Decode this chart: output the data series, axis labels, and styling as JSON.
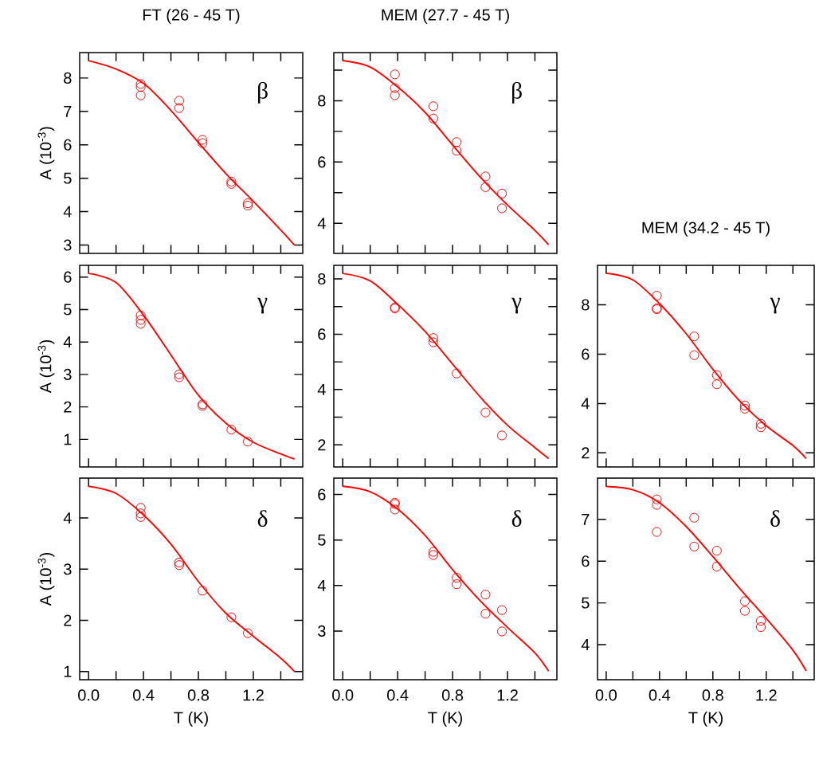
{
  "chart_data": [
    {
      "type": "scatter",
      "title": "FT (26 - 45 T)",
      "ylabel": "A (10$^{-3}$)",
      "annotations": [
        "β"
      ],
      "tick_labels": "y",
      "xlim": [
        -0.065,
        1.56
      ],
      "xticks": [
        {
          "value": 0,
          "label": null
        },
        {
          "value": 0.2,
          "label": null
        },
        {
          "value": 0.4,
          "label": null
        },
        {
          "value": 0.6,
          "label": null
        },
        {
          "value": 0.8,
          "label": null
        },
        {
          "value": 1.0,
          "label": null
        },
        {
          "value": 1.2,
          "label": null
        },
        {
          "value": 1.4,
          "label": null
        }
      ],
      "ylim": [
        2.75,
        8.76
      ],
      "yticks": [
        3,
        4,
        5,
        6,
        7,
        8
      ],
      "series": [
        {
          "marker": "circle",
          "color": "#ff0000",
          "x": [
            0.38,
            0.38,
            0.38,
            0.66,
            0.66,
            0.83,
            0.83,
            1.04,
            1.04,
            1.16,
            1.16
          ],
          "values": [
            7.82,
            7.73,
            7.48,
            7.32,
            7.1,
            6.15,
            6.05,
            4.9,
            4.83,
            4.25,
            4.18
          ]
        },
        {
          "type": "line",
          "color": "#ff0000",
          "x": [
            0,
            0.2,
            0.4,
            0.6,
            0.8,
            1.0,
            1.2,
            1.4,
            1.5
          ],
          "values": [
            8.52,
            8.27,
            7.84,
            7.03,
            6.07,
            5.14,
            4.31,
            3.45,
            3.0
          ]
        }
      ]
    },
    {
      "type": "scatter",
      "title": "MEM (27.7 - 45 T)",
      "annotations": [
        "β"
      ],
      "tick_labels": "y",
      "xlim": [
        -0.065,
        1.56
      ],
      "xticks": [
        {
          "value": 0,
          "label": null
        },
        {
          "value": 0.2,
          "label": null
        },
        {
          "value": 0.4,
          "label": null
        },
        {
          "value": 0.6,
          "label": null
        },
        {
          "value": 0.8,
          "label": null
        },
        {
          "value": 1.0,
          "label": null
        },
        {
          "value": 1.2,
          "label": null
        },
        {
          "value": 1.4,
          "label": null
        }
      ],
      "ylim": [
        3.02,
        9.57
      ],
      "yticks": [
        4,
        {
          "value": 5,
          "label": null
        },
        6,
        {
          "value": 7,
          "label": null
        },
        8,
        {
          "value": 9,
          "label": null
        }
      ],
      "series": [
        {
          "marker": "circle",
          "color": "#ff0000",
          "x": [
            0.38,
            0.38,
            0.38,
            0.66,
            0.66,
            0.83,
            0.83,
            1.04,
            1.04,
            1.16,
            1.16
          ],
          "values": [
            8.86,
            8.41,
            8.18,
            7.82,
            7.42,
            6.65,
            6.37,
            5.53,
            5.18,
            4.97,
            4.49
          ]
        },
        {
          "type": "line",
          "color": "#ff0000",
          "x": [
            0,
            0.2,
            0.4,
            0.6,
            0.8,
            1.0,
            1.2,
            1.4,
            1.5
          ],
          "values": [
            9.31,
            9.1,
            8.45,
            7.62,
            6.56,
            5.52,
            4.6,
            3.77,
            3.3
          ]
        }
      ]
    },
    {
      "type": "scatter",
      "ylabel": "A (10$^{-3}$)",
      "annotations": [
        "γ"
      ],
      "tick_labels": "y",
      "xlim": [
        -0.065,
        1.56
      ],
      "xticks": [
        {
          "value": 0,
          "label": null
        },
        {
          "value": 0.2,
          "label": null
        },
        {
          "value": 0.4,
          "label": null
        },
        {
          "value": 0.6,
          "label": null
        },
        {
          "value": 0.8,
          "label": null
        },
        {
          "value": 1.0,
          "label": null
        },
        {
          "value": 1.2,
          "label": null
        },
        {
          "value": 1.4,
          "label": null
        }
      ],
      "ylim": [
        0.15,
        6.36
      ],
      "yticks": [
        1,
        2,
        3,
        4,
        5,
        6
      ],
      "series": [
        {
          "marker": "circle",
          "color": "#ff0000",
          "x": [
            0.38,
            0.38,
            0.38,
            0.66,
            0.66,
            0.83,
            0.83,
            1.04,
            1.16
          ],
          "values": [
            4.82,
            4.68,
            4.56,
            3.0,
            2.91,
            2.08,
            2.03,
            1.3,
            0.93
          ]
        },
        {
          "type": "line",
          "color": "#ff0000",
          "x": [
            0,
            0.2,
            0.4,
            0.6,
            0.8,
            1.0,
            1.2,
            1.4,
            1.5
          ],
          "values": [
            6.11,
            5.83,
            4.83,
            3.6,
            2.36,
            1.5,
            0.91,
            0.55,
            0.39
          ]
        }
      ]
    },
    {
      "type": "scatter",
      "annotations": [
        "γ"
      ],
      "tick_labels": "y",
      "xlim": [
        -0.065,
        1.56
      ],
      "xticks": [
        {
          "value": 0,
          "label": null
        },
        {
          "value": 0.2,
          "label": null
        },
        {
          "value": 0.4,
          "label": null
        },
        {
          "value": 0.6,
          "label": null
        },
        {
          "value": 0.8,
          "label": null
        },
        {
          "value": 1.0,
          "label": null
        },
        {
          "value": 1.2,
          "label": null
        },
        {
          "value": 1.4,
          "label": null
        }
      ],
      "ylim": [
        1.2,
        8.49
      ],
      "yticks": [
        2,
        {
          "value": 3,
          "label": null
        },
        4,
        {
          "value": 5,
          "label": null
        },
        6,
        {
          "value": 7,
          "label": null
        },
        8
      ],
      "series": [
        {
          "marker": "circle",
          "color": "#ff0000",
          "x": [
            0.38,
            0.38,
            0.66,
            0.66,
            0.83,
            1.04,
            1.16
          ],
          "values": [
            6.97,
            6.93,
            5.86,
            5.71,
            4.58,
            3.17,
            2.34
          ]
        },
        {
          "type": "line",
          "color": "#ff0000",
          "x": [
            0,
            0.2,
            0.4,
            0.6,
            0.8,
            1.0,
            1.2,
            1.4,
            1.5
          ],
          "values": [
            8.2,
            7.93,
            7.08,
            6.1,
            4.92,
            3.74,
            2.71,
            1.9,
            1.5
          ]
        }
      ]
    },
    {
      "type": "scatter",
      "title": "MEM (34.2 - 45 T)",
      "annotations": [
        "γ"
      ],
      "tick_labels": "y",
      "xlim": [
        -0.065,
        1.56
      ],
      "xticks": [
        {
          "value": 0,
          "label": null
        },
        {
          "value": 0.2,
          "label": null
        },
        {
          "value": 0.4,
          "label": null
        },
        {
          "value": 0.6,
          "label": null
        },
        {
          "value": 0.8,
          "label": null
        },
        {
          "value": 1.0,
          "label": null
        },
        {
          "value": 1.2,
          "label": null
        },
        {
          "value": 1.4,
          "label": null
        }
      ],
      "ylim": [
        1.43,
        9.6
      ],
      "yticks": [
        2,
        4,
        6,
        8
      ],
      "series": [
        {
          "marker": "circle",
          "color": "#ff0000",
          "x": [
            0.38,
            0.38,
            0.38,
            0.66,
            0.66,
            0.83,
            0.83,
            1.04,
            1.04,
            1.16,
            1.16
          ],
          "values": [
            8.37,
            7.86,
            7.82,
            6.72,
            5.96,
            5.15,
            4.78,
            3.92,
            3.79,
            3.18,
            3.04
          ]
        },
        {
          "type": "line",
          "color": "#ff0000",
          "x": [
            0,
            0.2,
            0.4,
            0.6,
            0.8,
            1.0,
            1.2,
            1.4,
            1.5
          ],
          "values": [
            9.28,
            9.01,
            8.05,
            6.83,
            5.39,
            4.11,
            3.1,
            2.3,
            1.77
          ]
        }
      ]
    },
    {
      "type": "scatter",
      "ylabel": "A (10$^{-3}$)",
      "xlabel": "T (K)",
      "annotations": [
        "δ"
      ],
      "xlim": [
        -0.065,
        1.56
      ],
      "xticks": [
        {
          "value": 0,
          "label": "0.0"
        },
        {
          "value": 0.2,
          "label": null
        },
        {
          "value": 0.4,
          "label": "0.4"
        },
        {
          "value": 0.6,
          "label": null
        },
        {
          "value": 0.8,
          "label": "0.8"
        },
        {
          "value": 1.0,
          "label": null
        },
        {
          "value": 1.2,
          "label": "1.2"
        },
        {
          "value": 1.4,
          "label": null
        }
      ],
      "ylim": [
        0.84,
        4.78
      ],
      "yticks": [
        1,
        2,
        3,
        4
      ],
      "series": [
        {
          "marker": "circle",
          "color": "#ff0000",
          "x": [
            0.38,
            0.38,
            0.38,
            0.66,
            0.66,
            0.83,
            1.04,
            1.16
          ],
          "values": [
            4.2,
            4.09,
            4.02,
            3.13,
            3.08,
            2.58,
            2.06,
            1.75
          ]
        },
        {
          "type": "line",
          "color": "#ff0000",
          "x": [
            0,
            0.2,
            0.4,
            0.6,
            0.8,
            1.0,
            1.2,
            1.4,
            1.5
          ],
          "values": [
            4.62,
            4.48,
            4.06,
            3.49,
            2.76,
            2.14,
            1.69,
            1.26,
            1.0
          ]
        }
      ]
    },
    {
      "type": "scatter",
      "xlabel": "T (K)",
      "annotations": [
        "δ"
      ],
      "xlim": [
        -0.065,
        1.56
      ],
      "xticks": [
        {
          "value": 0,
          "label": "0.0"
        },
        {
          "value": 0.2,
          "label": null
        },
        {
          "value": 0.4,
          "label": "0.4"
        },
        {
          "value": 0.6,
          "label": null
        },
        {
          "value": 0.8,
          "label": "0.8"
        },
        {
          "value": 1.0,
          "label": null
        },
        {
          "value": 1.2,
          "label": "1.2"
        },
        {
          "value": 1.4,
          "label": null
        }
      ],
      "ylim": [
        1.93,
        6.36
      ],
      "yticks": [
        3,
        4,
        5,
        6
      ],
      "series": [
        {
          "marker": "circle",
          "color": "#ff0000",
          "x": [
            0.38,
            0.38,
            0.38,
            0.66,
            0.66,
            0.83,
            0.83,
            1.04,
            1.04,
            1.16,
            1.16
          ],
          "values": [
            5.82,
            5.79,
            5.67,
            4.74,
            4.67,
            4.17,
            4.03,
            3.8,
            3.38,
            3.46,
            2.99
          ]
        },
        {
          "type": "line",
          "color": "#ff0000",
          "x": [
            0,
            0.2,
            0.4,
            0.6,
            0.8,
            1.0,
            1.2,
            1.4,
            1.5
          ],
          "values": [
            6.18,
            6.06,
            5.68,
            5.1,
            4.35,
            3.67,
            3.08,
            2.52,
            2.12
          ]
        }
      ]
    },
    {
      "type": "scatter",
      "xlabel": "T (K)",
      "annotations": [
        "δ"
      ],
      "xlim": [
        -0.065,
        1.56
      ],
      "xticks": [
        {
          "value": 0,
          "label": "0.0"
        },
        {
          "value": 0.2,
          "label": null
        },
        {
          "value": 0.4,
          "label": "0.4"
        },
        {
          "value": 0.6,
          "label": null
        },
        {
          "value": 0.8,
          "label": "0.8"
        },
        {
          "value": 1.0,
          "label": null
        },
        {
          "value": 1.2,
          "label": "1.2"
        },
        {
          "value": 1.4,
          "label": null
        }
      ],
      "ylim": [
        3.16,
        7.99
      ],
      "yticks": [
        4,
        5,
        6,
        7
      ],
      "series": [
        {
          "marker": "circle",
          "color": "#ff0000",
          "x": [
            0.38,
            0.38,
            0.38,
            0.66,
            0.66,
            0.83,
            0.83,
            1.04,
            1.04,
            1.16,
            1.16
          ],
          "values": [
            7.48,
            7.35,
            6.7,
            7.04,
            6.35,
            6.25,
            5.87,
            5.04,
            4.81,
            4.57,
            4.42
          ]
        },
        {
          "type": "line",
          "color": "#ff0000",
          "x": [
            0,
            0.2,
            0.4,
            0.6,
            0.8,
            1.0,
            1.2,
            1.4,
            1.5
          ],
          "values": [
            7.79,
            7.71,
            7.4,
            6.83,
            6.11,
            5.35,
            4.63,
            3.87,
            3.37
          ]
        }
      ]
    }
  ]
}
